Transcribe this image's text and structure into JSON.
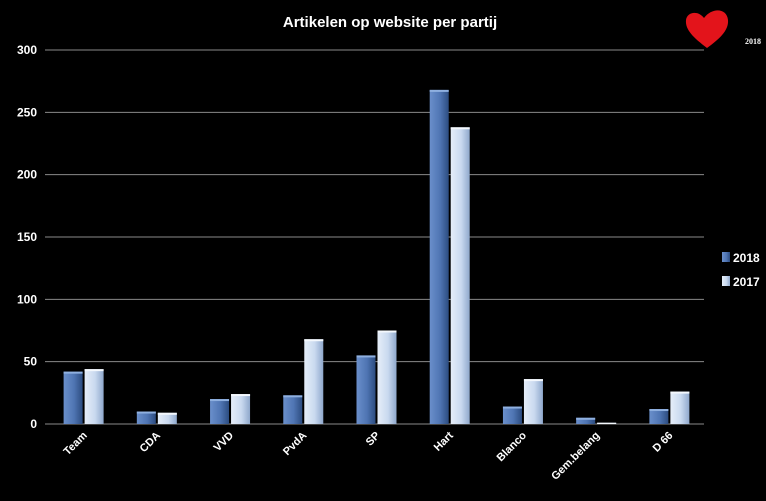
{
  "badge": {
    "year": "2018",
    "color": "#e3141b"
  },
  "chart_data": {
    "type": "bar",
    "title": "Artikelen op website per partij",
    "xlabel": "",
    "ylabel": "",
    "ylim": [
      0,
      300
    ],
    "yticks": [
      "0",
      "50",
      "100",
      "150",
      "200",
      "250",
      "300"
    ],
    "grid": true,
    "legend_position": "right",
    "categories": [
      "Team",
      "CDA",
      "VVD",
      "PvdA",
      "SP",
      "Hart",
      "Blanco",
      "Gem.belang",
      "D 66"
    ],
    "series": [
      {
        "name": "2018",
        "color": "#4f75b3",
        "values": [
          42,
          10,
          20,
          23,
          55,
          268,
          14,
          5,
          12
        ]
      },
      {
        "name": "2017",
        "color": "#c9d9ef",
        "values": [
          44,
          9,
          24,
          68,
          75,
          238,
          36,
          1,
          26
        ]
      }
    ]
  }
}
